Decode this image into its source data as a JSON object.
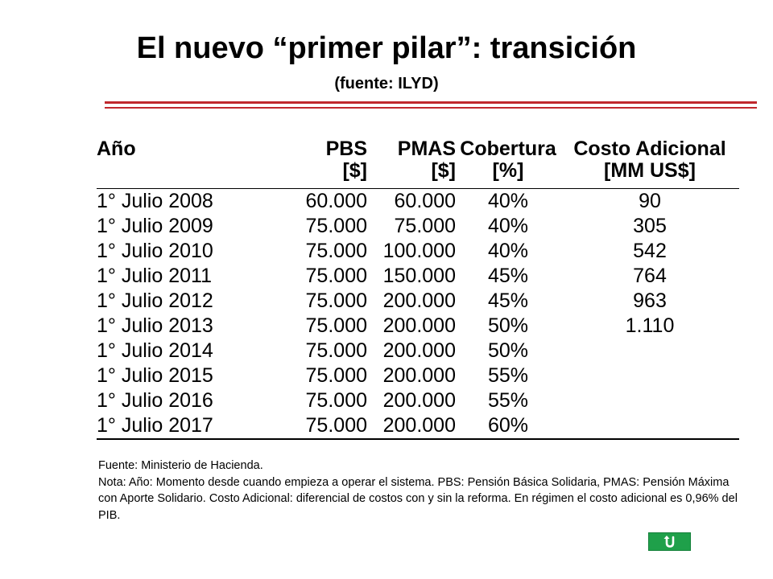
{
  "slide": {
    "title": "El nuevo “primer pilar”: transición",
    "subtitle": "(fuente: ILYD)"
  },
  "table": {
    "headers": {
      "year": "Año",
      "pbs": [
        "PBS",
        "[$]"
      ],
      "pmas": [
        "PMAS",
        "[$]"
      ],
      "cobertura": [
        "Cobertura",
        "[%]"
      ],
      "costo": [
        "Costo Adicional",
        "[MM US$]"
      ]
    },
    "rows": [
      {
        "year": "1° Julio 2008",
        "pbs": "60.000",
        "pmas": "60.000",
        "cobertura": "40%",
        "costo": "90"
      },
      {
        "year": "1° Julio 2009",
        "pbs": "75.000",
        "pmas": "75.000",
        "cobertura": "40%",
        "costo": "305"
      },
      {
        "year": "1° Julio 2010",
        "pbs": "75.000",
        "pmas": "100.000",
        "cobertura": "40%",
        "costo": "542"
      },
      {
        "year": "1° Julio 2011",
        "pbs": "75.000",
        "pmas": "150.000",
        "cobertura": "45%",
        "costo": "764"
      },
      {
        "year": "1° Julio 2012",
        "pbs": "75.000",
        "pmas": "200.000",
        "cobertura": "45%",
        "costo": "963"
      },
      {
        "year": "1° Julio 2013",
        "pbs": "75.000",
        "pmas": "200.000",
        "cobertura": "50%",
        "costo": "1.110"
      },
      {
        "year": "1° Julio 2014",
        "pbs": "75.000",
        "pmas": "200.000",
        "cobertura": "50%",
        "costo": ""
      },
      {
        "year": "1° Julio 2015",
        "pbs": "75.000",
        "pmas": "200.000",
        "cobertura": "55%",
        "costo": ""
      },
      {
        "year": "1° Julio 2016",
        "pbs": "75.000",
        "pmas": "200.000",
        "cobertura": "55%",
        "costo": ""
      },
      {
        "year": "1° Julio 2017",
        "pbs": "75.000",
        "pmas": "200.000",
        "cobertura": "60%",
        "costo": ""
      }
    ]
  },
  "notes": {
    "source": "Fuente: Ministerio de Hacienda.",
    "note": "Nota: Año: Momento desde cuando empieza a operar el sistema. PBS: Pensión Básica Solidaria, PMAS: Pensión Máxima con Aporte Solidario. Costo Adicional: diferencial de costos con y sin la reforma. En régimen el costo adicional es 0,96% del PIB."
  },
  "nav": {
    "return_icon": "return-u-arrow-icon",
    "accent": "#1fa04a"
  },
  "colors": {
    "rule": "#c0282d"
  }
}
